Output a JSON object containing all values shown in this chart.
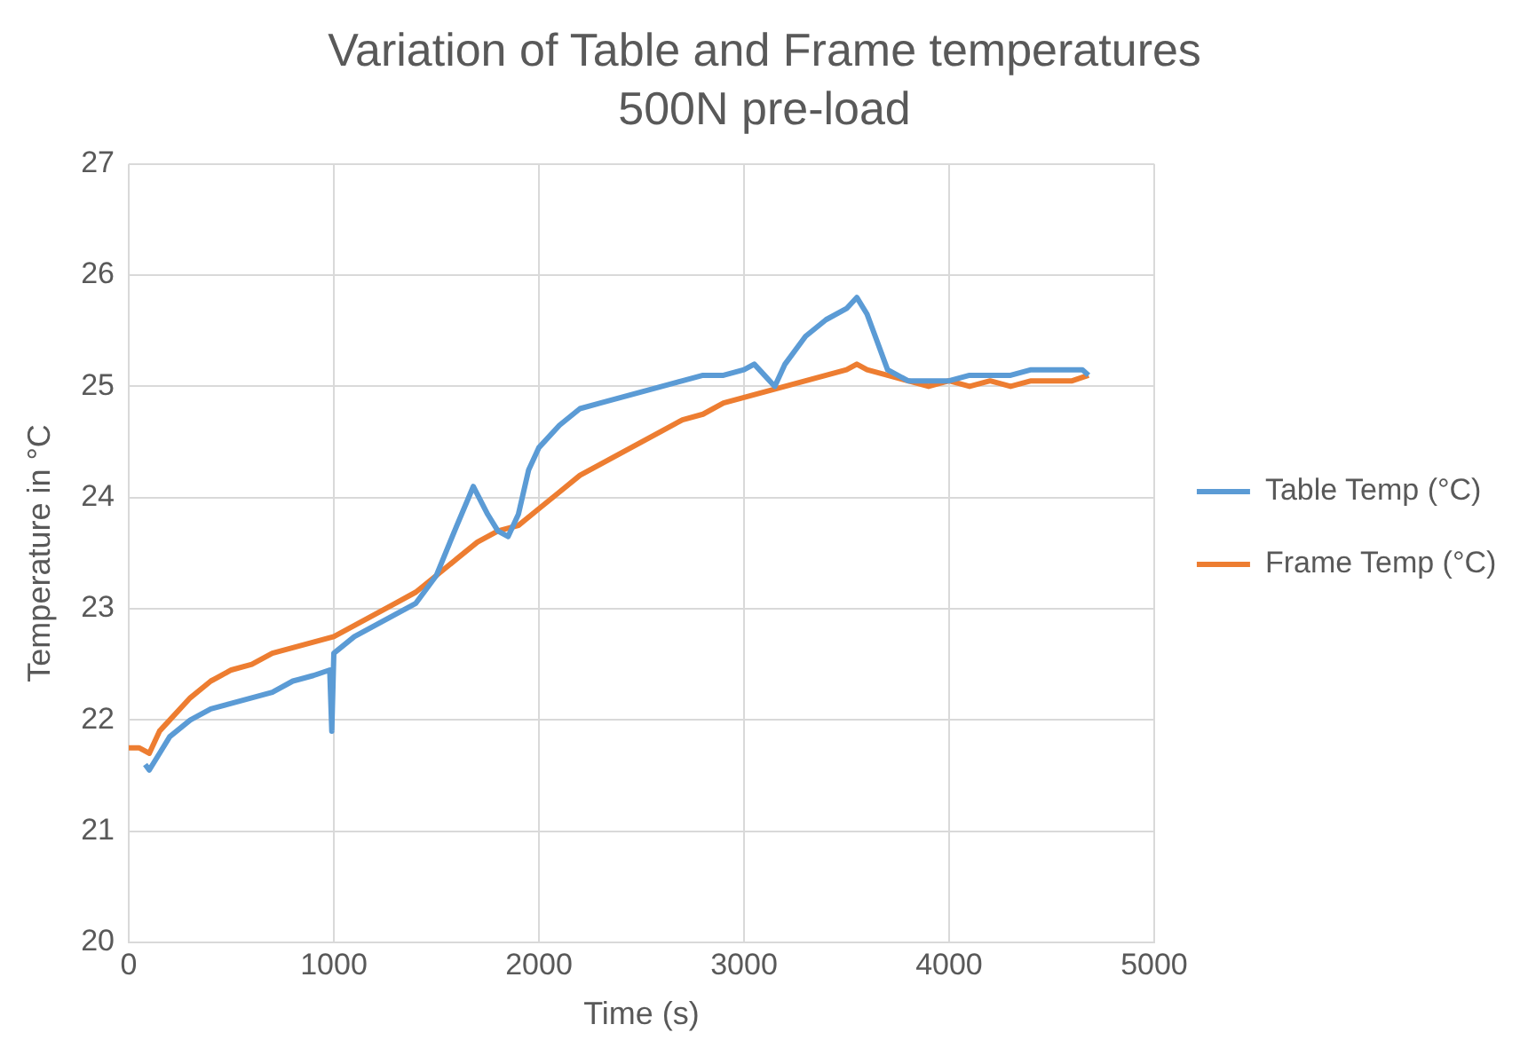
{
  "chart_data": {
    "type": "line",
    "title": "Variation of Table and Frame temperatures",
    "subtitle": "500N pre-load",
    "xlabel": "Time (s)",
    "ylabel": "Temperature in °C",
    "xlim": [
      0,
      5000
    ],
    "xticks": [
      0,
      1000,
      2000,
      3000,
      4000,
      5000
    ],
    "ylim": [
      20,
      27
    ],
    "yticks": [
      20,
      21,
      22,
      23,
      24,
      25,
      26,
      27
    ],
    "grid": true,
    "legend": "right",
    "marker": "none",
    "line_style": "solid",
    "series": [
      {
        "name": "Table Temp (°C)",
        "color": "#5b9bd5",
        "x": [
          80,
          100,
          150,
          200,
          300,
          400,
          500,
          600,
          700,
          800,
          900,
          980,
          990,
          1000,
          1100,
          1200,
          1300,
          1400,
          1500,
          1600,
          1680,
          1750,
          1800,
          1850,
          1900,
          1950,
          2000,
          2100,
          2200,
          2300,
          2400,
          2500,
          2600,
          2700,
          2800,
          2900,
          3000,
          3050,
          3100,
          3150,
          3200,
          3300,
          3400,
          3500,
          3550,
          3600,
          3650,
          3700,
          3800,
          3900,
          4000,
          4100,
          4200,
          4300,
          4400,
          4500,
          4600,
          4650,
          4680
        ],
        "values": [
          21.6,
          21.55,
          21.7,
          21.85,
          22.0,
          22.1,
          22.15,
          22.2,
          22.25,
          22.35,
          22.4,
          22.45,
          21.9,
          22.6,
          22.75,
          22.85,
          22.95,
          23.05,
          23.3,
          23.75,
          24.1,
          23.85,
          23.7,
          23.65,
          23.85,
          24.25,
          24.45,
          24.65,
          24.8,
          24.85,
          24.9,
          24.95,
          25.0,
          25.05,
          25.1,
          25.1,
          25.15,
          25.2,
          25.1,
          25.0,
          25.2,
          25.45,
          25.6,
          25.7,
          25.8,
          25.65,
          25.4,
          25.15,
          25.05,
          25.05,
          25.05,
          25.1,
          25.1,
          25.1,
          25.15,
          25.15,
          25.15,
          25.15,
          25.1
        ]
      },
      {
        "name": "Frame Temp (°C)",
        "color": "#ed7d31",
        "x": [
          0,
          50,
          100,
          150,
          200,
          300,
          400,
          500,
          600,
          700,
          800,
          900,
          1000,
          1100,
          1200,
          1300,
          1400,
          1500,
          1600,
          1700,
          1800,
          1900,
          2000,
          2100,
          2200,
          2300,
          2400,
          2500,
          2600,
          2700,
          2800,
          2900,
          3000,
          3100,
          3200,
          3300,
          3400,
          3500,
          3550,
          3600,
          3700,
          3800,
          3900,
          4000,
          4100,
          4200,
          4300,
          4400,
          4500,
          4600,
          4680
        ],
        "values": [
          21.75,
          21.75,
          21.7,
          21.9,
          22.0,
          22.2,
          22.35,
          22.45,
          22.5,
          22.6,
          22.65,
          22.7,
          22.75,
          22.85,
          22.95,
          23.05,
          23.15,
          23.3,
          23.45,
          23.6,
          23.7,
          23.75,
          23.9,
          24.05,
          24.2,
          24.3,
          24.4,
          24.5,
          24.6,
          24.7,
          24.75,
          24.85,
          24.9,
          24.95,
          25.0,
          25.05,
          25.1,
          25.15,
          25.2,
          25.15,
          25.1,
          25.05,
          25.0,
          25.05,
          25.0,
          25.05,
          25.0,
          25.05,
          25.05,
          25.05,
          25.1
        ]
      }
    ]
  }
}
